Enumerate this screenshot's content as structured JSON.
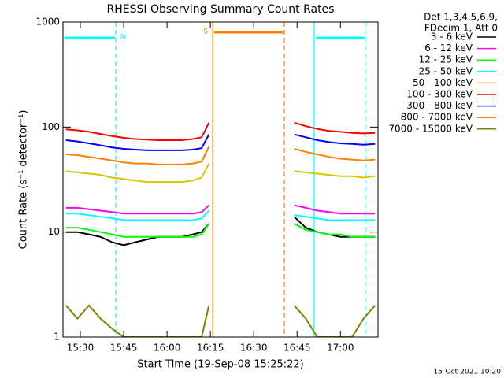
{
  "chart_data": {
    "type": "line",
    "title": "RHESSI Observing Summary Count Rates",
    "x_label": "Start Time (19-Sep-08 15:25:22)",
    "y_label": "Count Rate (s⁻¹ detector⁻¹)",
    "legend_header": [
      "Det 1,3,4,5,6,9,",
      "FDecim 1, Att 0"
    ],
    "footer": "15-Oct-2021 10:20",
    "log_y": true,
    "xlim": [
      924,
      1033
    ],
    "xticks": [
      {
        "value": 930,
        "label": "15:30"
      },
      {
        "value": 945,
        "label": "15:45"
      },
      {
        "value": 960,
        "label": "16:00"
      },
      {
        "value": 975,
        "label": "16:15"
      },
      {
        "value": 990,
        "label": "16:30"
      },
      {
        "value": 1005,
        "label": "16:45"
      },
      {
        "value": 1020,
        "label": "17:00"
      }
    ],
    "ylim": [
      1,
      1000
    ],
    "yticks": [
      1,
      10,
      100,
      1000
    ],
    "flags": [
      {
        "label": "N",
        "color": "#00ffff",
        "start": 924,
        "end": 942.3
      },
      {
        "label": "S",
        "color": "#ff8000",
        "start": 975.8,
        "end": 1000.6
      },
      {
        "color": "#00ffff",
        "start": 1010.9,
        "end": 1028.6
      }
    ],
    "x": [
      925,
      929,
      933,
      937,
      941,
      945,
      949,
      953,
      957,
      961,
      965,
      969,
      972,
      974.5,
      985,
      1004,
      1008,
      1012,
      1016,
      1020,
      1024,
      1028,
      1032
    ],
    "series": [
      {
        "name": "3 - 6 keV",
        "color": "#000000",
        "values": [
          10,
          10,
          9.5,
          9,
          8,
          7.5,
          8,
          8.5,
          9,
          9,
          9,
          9.5,
          10,
          12,
          null,
          14,
          11,
          10,
          9.5,
          9,
          9,
          9,
          9
        ]
      },
      {
        "name": "6 - 12 keV",
        "color": "#ff00ff",
        "values": [
          17,
          17,
          16.5,
          16,
          15.5,
          15,
          15,
          15,
          15,
          15,
          15,
          15,
          15.5,
          18,
          null,
          18,
          17,
          16,
          15.5,
          15,
          15,
          15,
          15
        ]
      },
      {
        "name": "12 - 25 keV",
        "color": "#00ff00",
        "values": [
          11,
          11,
          10.5,
          10,
          9.5,
          9,
          9,
          9,
          9,
          9,
          9,
          9,
          9.5,
          12,
          null,
          12,
          10.5,
          10,
          9.5,
          9.5,
          9,
          9,
          9
        ]
      },
      {
        "name": "25 - 50 keV",
        "color": "#00ffff",
        "values": [
          15,
          15,
          14.5,
          14,
          13.5,
          13,
          13,
          13,
          13,
          13,
          13,
          13,
          13.5,
          16,
          null,
          14.5,
          14,
          13.5,
          13,
          13,
          13,
          13,
          13
        ]
      },
      {
        "name": "50 - 100 keV",
        "color": "#d4c800",
        "values": [
          38,
          37,
          36,
          35,
          33,
          32,
          31,
          30,
          30,
          30,
          30,
          31,
          33,
          45,
          null,
          38,
          37,
          36,
          35,
          34,
          34,
          33,
          34
        ]
      },
      {
        "name": "100 - 300 keV",
        "color": "#ff0000",
        "values": [
          95,
          93,
          90,
          86,
          82,
          79,
          77,
          76,
          75,
          75,
          75,
          77,
          80,
          110,
          null,
          110,
          102,
          96,
          92,
          90,
          88,
          87,
          88
        ]
      },
      {
        "name": "300 - 800 keV",
        "color": "#0000ff",
        "values": [
          75,
          73,
          70,
          67,
          64,
          62,
          61,
          60,
          60,
          60,
          60,
          61,
          63,
          85,
          null,
          85,
          80,
          75,
          72,
          70,
          69,
          68,
          69
        ]
      },
      {
        "name": "800 - 7000 keV",
        "color": "#ff8000",
        "values": [
          55,
          54,
          52,
          50,
          48,
          46,
          45,
          45,
          44,
          44,
          44,
          45,
          47,
          65,
          null,
          62,
          58,
          55,
          52,
          50,
          49,
          48,
          49
        ]
      },
      {
        "name": "7000 - 15000 keV",
        "color": "#808000",
        "values": [
          2,
          1.5,
          2,
          1.5,
          1.2,
          1,
          1,
          1,
          1,
          1,
          1,
          1,
          1,
          2,
          null,
          2,
          1.5,
          1,
          1,
          1,
          1,
          1.5,
          2
        ]
      }
    ]
  }
}
